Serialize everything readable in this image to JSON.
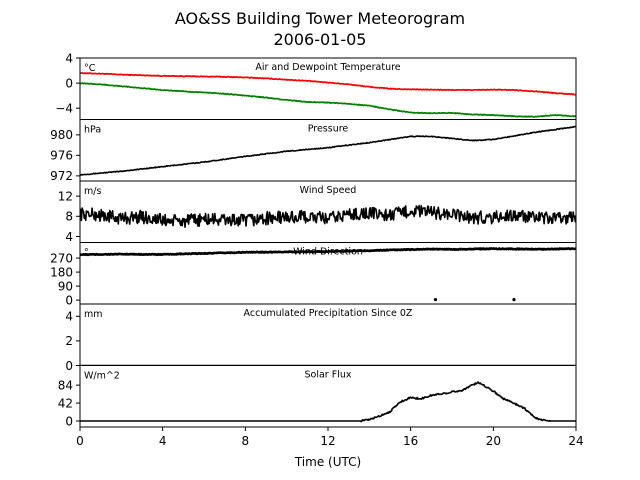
{
  "chart_data": {
    "type": "line",
    "title": "AO&SS Building Tower Meteorogram",
    "subtitle": "2006-01-05",
    "xlabel": "Time (UTC)",
    "xlim": [
      0,
      24
    ],
    "xticks": [
      0,
      4,
      8,
      12,
      16,
      20,
      24
    ],
    "panels": [
      {
        "key": "temp",
        "title": "Air and Dewpoint Temperature",
        "unit": "°C",
        "ylim": [
          -5.8,
          4
        ],
        "yticks": [
          4,
          0,
          -4
        ],
        "yticklabels": [
          "4",
          "0",
          "−4"
        ],
        "series": [
          {
            "color": "#ff0000",
            "x": [
              0,
              1,
              2,
              3,
              4,
              5,
              6,
              7,
              8,
              9,
              10,
              11,
              12,
              13,
              14,
              15,
              16,
              17,
              18,
              19,
              20,
              21,
              22,
              23,
              24
            ],
            "values": [
              1.6,
              1.5,
              1.35,
              1.25,
              1.15,
              1.1,
              1.05,
              1.0,
              0.9,
              0.75,
              0.55,
              0.35,
              0.1,
              -0.2,
              -0.6,
              -0.9,
              -1.0,
              -1.05,
              -1.1,
              -1.1,
              -1.05,
              -1.1,
              -1.3,
              -1.6,
              -1.8
            ]
          },
          {
            "color": "#008000",
            "x": [
              0,
              1,
              2,
              3,
              4,
              5,
              6,
              7,
              8,
              9,
              10,
              11,
              12,
              13,
              14,
              15,
              16,
              17,
              18,
              19,
              20,
              21,
              22,
              23,
              24
            ],
            "values": [
              0.0,
              -0.2,
              -0.5,
              -0.8,
              -1.1,
              -1.3,
              -1.5,
              -1.7,
              -2.0,
              -2.3,
              -2.7,
              -3.0,
              -3.1,
              -3.3,
              -3.6,
              -4.2,
              -4.7,
              -4.8,
              -4.75,
              -5.0,
              -5.1,
              -5.3,
              -5.35,
              -5.1,
              -5.3
            ]
          }
        ]
      },
      {
        "key": "pressure",
        "title": "Pressure",
        "unit": "hPa",
        "ylim": [
          971,
          983
        ],
        "yticks": [
          980,
          976,
          972
        ],
        "yticklabels": [
          "980",
          "976",
          "972"
        ],
        "series": [
          {
            "color": "#000000",
            "x": [
              0,
              2,
              4,
              6,
              8,
              10,
              12,
              14,
              16,
              17,
              18,
              19,
              20,
              22,
              24
            ],
            "values": [
              972.2,
              972.9,
              973.8,
              974.7,
              975.8,
              976.8,
              977.5,
              978.5,
              979.7,
              979.7,
              979.3,
              978.9,
              979.1,
              980.5,
              981.6
            ]
          }
        ]
      },
      {
        "key": "wind_speed",
        "title": "Wind Speed",
        "unit": "m/s",
        "ylim": [
          2.8,
          15
        ],
        "yticks": [
          12,
          8,
          4
        ],
        "yticklabels": [
          "12",
          "8",
          "4"
        ],
        "series": [
          {
            "color": "#000000",
            "x": [
              0,
              1,
              2,
              3,
              4,
              5,
              6,
              7,
              8,
              9,
              10,
              11,
              12,
              13,
              14,
              15,
              16,
              17,
              18,
              19,
              20,
              21,
              22,
              23,
              24
            ],
            "values": [
              8.5,
              8.2,
              7.6,
              7.9,
              7.2,
              7.0,
              7.4,
              7.3,
              7.1,
              7.6,
              7.8,
              7.9,
              7.5,
              8.4,
              8.6,
              8.2,
              9.1,
              8.8,
              8.3,
              7.7,
              7.8,
              8.2,
              7.6,
              7.5,
              7.9
            ]
          }
        ]
      },
      {
        "key": "wind_dir",
        "title": "Wind Direction",
        "unit": "°",
        "ylim": [
          -25,
          370
        ],
        "yticks": [
          270,
          180,
          90,
          0
        ],
        "yticklabels": [
          "270",
          "180",
          "90",
          "0"
        ],
        "series": [
          {
            "color": "#000000",
            "x": [
              0,
              2,
              4,
              6,
              8,
              10,
              12,
              14,
              16,
              17,
              18,
              20,
              22,
              24
            ],
            "values": [
              292,
              295,
              293,
              300,
              307,
              310,
              312,
              318,
              325,
              328,
              326,
              330,
              327,
              330
            ]
          }
        ],
        "points": [
          {
            "x": 17.2,
            "y": 3
          },
          {
            "x": 21.0,
            "y": 3
          }
        ]
      },
      {
        "key": "precip",
        "title": "Accumulated Precipitation Since 0Z",
        "unit": "mm",
        "ylim": [
          0,
          5
        ],
        "yticks": [
          4,
          2,
          0
        ],
        "yticklabels": [
          "4",
          "2",
          "0"
        ],
        "series": [
          {
            "color": "#000000",
            "x": [
              0,
              24
            ],
            "values": [
              0,
              0
            ]
          }
        ]
      },
      {
        "key": "solar",
        "title": "Solar Flux",
        "unit": "W/m^2",
        "ylim": [
          -14,
          130
        ],
        "yticks": [
          84,
          42,
          0
        ],
        "yticklabels": [
          "84",
          "42",
          "0"
        ],
        "series": [
          {
            "color": "#000000",
            "x": [
              0,
              13.5,
              14.0,
              14.5,
              15.0,
              15.5,
              16.0,
              16.5,
              17.0,
              17.5,
              18.0,
              18.5,
              19.0,
              19.3,
              19.6,
              20.0,
              20.5,
              21.0,
              21.5,
              22.0,
              22.5,
              23.0,
              24.0
            ],
            "values": [
              0,
              0,
              3,
              12,
              22,
              45,
              55,
              52,
              60,
              64,
              68,
              72,
              85,
              90,
              82,
              70,
              52,
              42,
              30,
              8,
              1,
              0,
              0
            ]
          }
        ]
      }
    ]
  }
}
